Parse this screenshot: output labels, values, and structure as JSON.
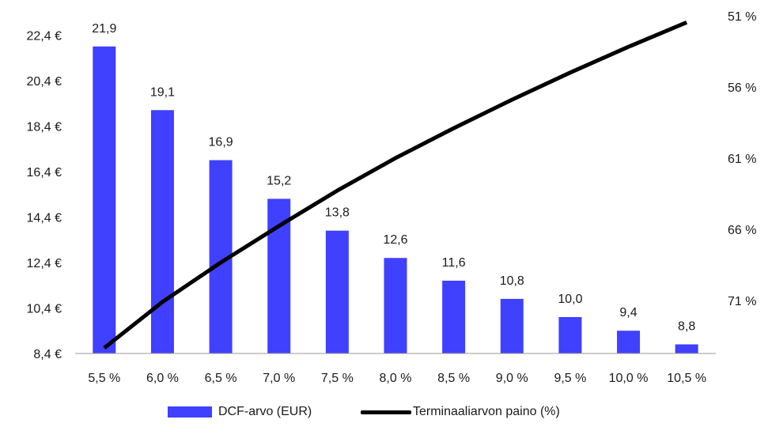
{
  "chart_data": {
    "type": "bar",
    "categories": [
      "5,5 %",
      "6,0 %",
      "6,5 %",
      "7,0 %",
      "7,5 %",
      "8,0 %",
      "8,5 %",
      "9,0 %",
      "9,5 %",
      "10,0 %",
      "10,5 %"
    ],
    "series": [
      {
        "name": "DCF-arvo (EUR)",
        "type": "bar",
        "axis": "left",
        "values": [
          21.9,
          19.1,
          16.9,
          15.2,
          13.8,
          12.6,
          11.6,
          10.8,
          10.0,
          9.4,
          8.8
        ],
        "data_labels": [
          "21,9",
          "19,1",
          "16,9",
          "15,2",
          "13,8",
          "12,6",
          "11,6",
          "10,8",
          "10,0",
          "9,4",
          "8,8"
        ],
        "color": "#4040ff"
      },
      {
        "name": "Terminaaliarvon paino (%)",
        "type": "line",
        "axis": "right",
        "values": [
          75.6,
          72.2,
          69.3,
          66.6,
          64.0,
          61.6,
          59.4,
          57.3,
          55.3,
          53.4,
          51.6
        ],
        "color": "#000000"
      }
    ],
    "y_left": {
      "min": 8.4,
      "max": 22.9,
      "ticks": [
        8.4,
        10.4,
        12.4,
        14.4,
        16.4,
        18.4,
        20.4,
        22.4
      ],
      "tick_labels": [
        "8,4 €",
        "10,4 €",
        "12,4 €",
        "14,4 €",
        "16,4 €",
        "18,4 €",
        "20,4 €",
        "22,4 €"
      ]
    },
    "y_right": {
      "min": 51,
      "max": 76,
      "reversed": true,
      "ticks": [
        51,
        56,
        61,
        66,
        71
      ],
      "tick_labels": [
        "51 %",
        "56 %",
        "61 %",
        "66 %",
        "71 %"
      ]
    },
    "grid": false,
    "legend_position": "bottom"
  }
}
